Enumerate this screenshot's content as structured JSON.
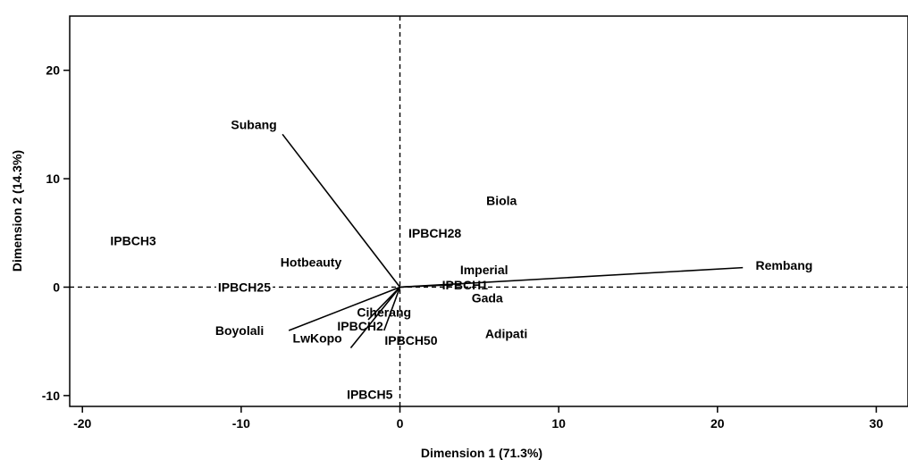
{
  "chart_data": {
    "type": "scatter",
    "title": "",
    "xlabel": "Dimension 1 (71.3%)",
    "ylabel": "Dimension 2 (14.3%)",
    "xlim": [
      -20.8,
      32
    ],
    "ylim": [
      -11,
      25
    ],
    "x_ticks": [
      -20,
      -10,
      0,
      10,
      20,
      30
    ],
    "y_ticks": [
      -10,
      0,
      10,
      20
    ],
    "reference_lines": {
      "x": 0,
      "y": 0,
      "style": "dashed"
    },
    "grid": false,
    "points": [
      {
        "label": "IPBCH3",
        "x": -16.8,
        "y": 4.3
      },
      {
        "label": "Hotbeauty",
        "x": -5.6,
        "y": 2.3
      },
      {
        "label": "IPBCH25",
        "x": -9.8,
        "y": 0.0
      },
      {
        "label": "Biola",
        "x": 6.4,
        "y": 8.0
      },
      {
        "label": "IPBCH28",
        "x": 2.2,
        "y": 5.0
      },
      {
        "label": "Imperial",
        "x": 5.3,
        "y": 1.6
      },
      {
        "label": "IPBCH1",
        "x": 4.1,
        "y": 0.2
      },
      {
        "label": "Gada",
        "x": 5.5,
        "y": -1.0
      },
      {
        "label": "Ciherang",
        "x": -1.0,
        "y": -2.3
      },
      {
        "label": "IPBCH2",
        "x": -2.5,
        "y": -3.6
      },
      {
        "label": "LwKopo",
        "x": -5.2,
        "y": -4.7
      },
      {
        "label": "IPBCH50",
        "x": 0.7,
        "y": -4.9
      },
      {
        "label": "Adipati",
        "x": 6.7,
        "y": -4.3
      },
      {
        "label": "IPBCH5",
        "x": -1.9,
        "y": -9.9
      }
    ],
    "vectors": [
      {
        "label": "Subang",
        "x": -7.4,
        "y": 14.1,
        "label_x": -9.2,
        "label_y": 15.0
      },
      {
        "label": "Rembang",
        "x": 21.6,
        "y": 1.8,
        "label_x": 24.2,
        "label_y": 2.0
      },
      {
        "label": "Boyolali",
        "x": -7.0,
        "y": -4.0,
        "label_x": -10.1,
        "label_y": -4.0
      },
      {
        "label": "Ciherang",
        "x": -2.0,
        "y": -3.0
      },
      {
        "label": "IPBCH2",
        "x": -1.0,
        "y": -4.0
      },
      {
        "label": "LwKopo",
        "x": -3.1,
        "y": -5.6
      },
      {
        "label": "IPBCH1",
        "x": 3.0,
        "y": 0.2
      }
    ]
  }
}
